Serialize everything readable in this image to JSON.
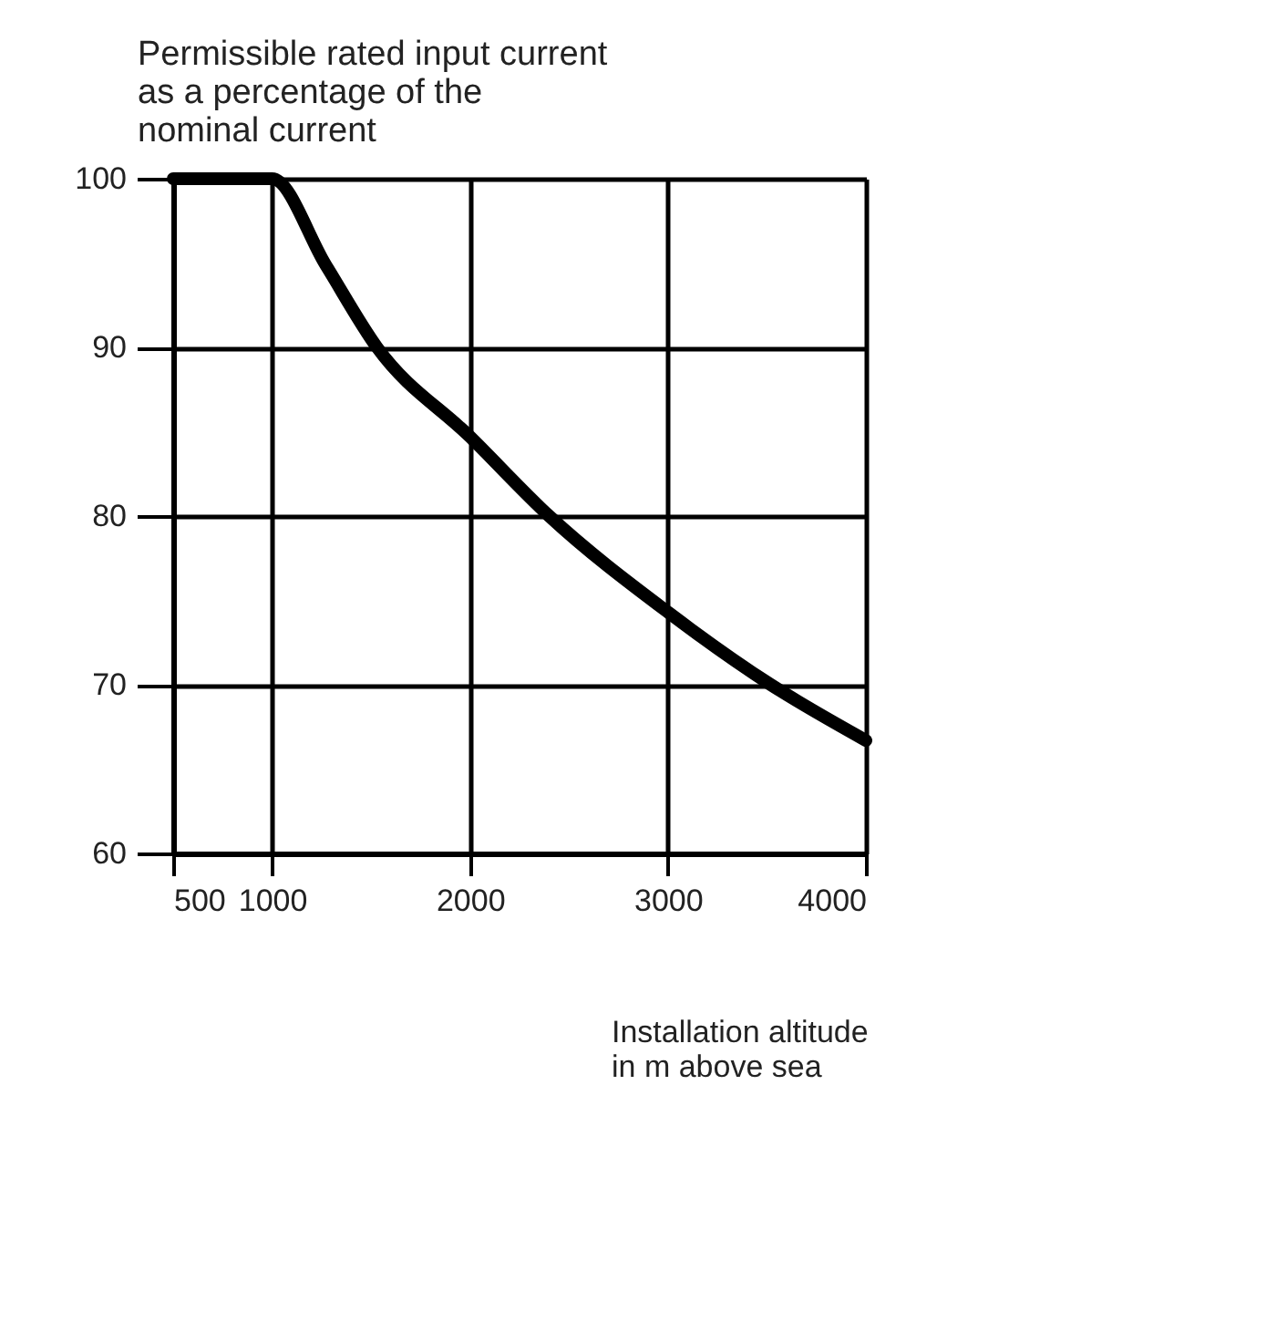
{
  "chart_data": {
    "type": "line",
    "ylabel": "Permissible rated input current\nas a percentage of the\nnominal current",
    "xlabel": "Installation altitude\nin m above sea",
    "x": [
      500,
      1000,
      1270,
      1530,
      2000,
      2400,
      3000,
      3520,
      4000
    ],
    "series": [
      {
        "color": "#000000",
        "values": [
          100,
          100,
          94.9,
          90,
          84.7,
          80,
          74.3,
          70,
          66.7
        ]
      }
    ],
    "xlim": [
      500,
      4000
    ],
    "xticks": [
      500,
      1000,
      2000,
      3000,
      4000
    ],
    "ylim": [
      60,
      100
    ],
    "yticks": [
      60,
      70,
      80,
      90,
      100
    ],
    "grid": true,
    "legend": false,
    "line_style": "solid"
  }
}
